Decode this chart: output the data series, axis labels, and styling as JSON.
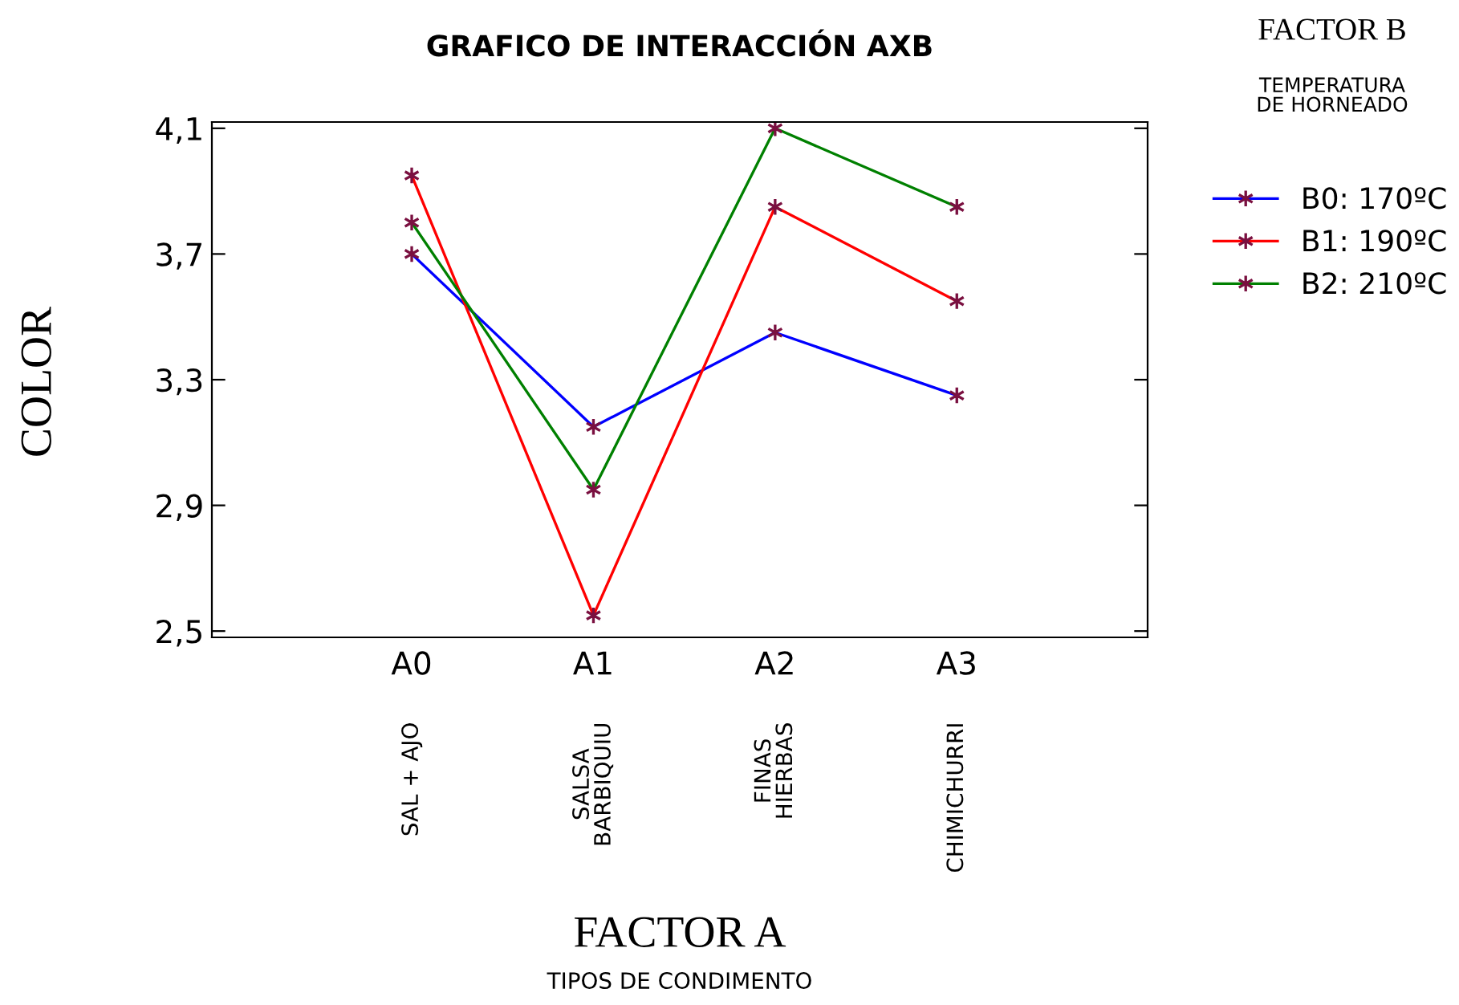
{
  "chart_data": {
    "type": "line",
    "title": "GRAFICO DE INTERACCIÓN AXB",
    "annotations": [
      "FACTOR A\nTIPOS DE CONDIMENTO"
    ],
    "ylabel": "COLOR",
    "legend_title": "FACTOR B\nTEMPERATURA\nDE HORNEADO",
    "categories": [
      "A0\nSAL + AJO",
      "A1\nSALSA\nBARBIQUIU",
      "A2\nFINAS\nHIERBAS",
      "A3\nCHIMICHURRI"
    ],
    "series": [
      {
        "name": "B0: 170ºC",
        "color": "#0000ff",
        "values": [
          3.7,
          3.15,
          3.45,
          3.25
        ]
      },
      {
        "name": "B1: 190ºC",
        "color": "#ff0000",
        "values": [
          3.95,
          2.55,
          3.85,
          3.55
        ]
      },
      {
        "name": "B2: 210ºC",
        "color": "#008000",
        "values": [
          3.8,
          2.95,
          4.1,
          3.85
        ]
      }
    ],
    "ylim": [
      2.48,
      4.12
    ],
    "yticks": [
      {
        "value": 2.5,
        "label": "2,5"
      },
      {
        "value": 2.9,
        "label": "2,9"
      },
      {
        "value": 3.3,
        "label": "3,3"
      },
      {
        "value": 3.7,
        "label": "3,7"
      },
      {
        "value": 4.1,
        "label": "4,1"
      }
    ],
    "marker": "cross",
    "line_style": "solid",
    "grid": false,
    "legend": "right"
  }
}
